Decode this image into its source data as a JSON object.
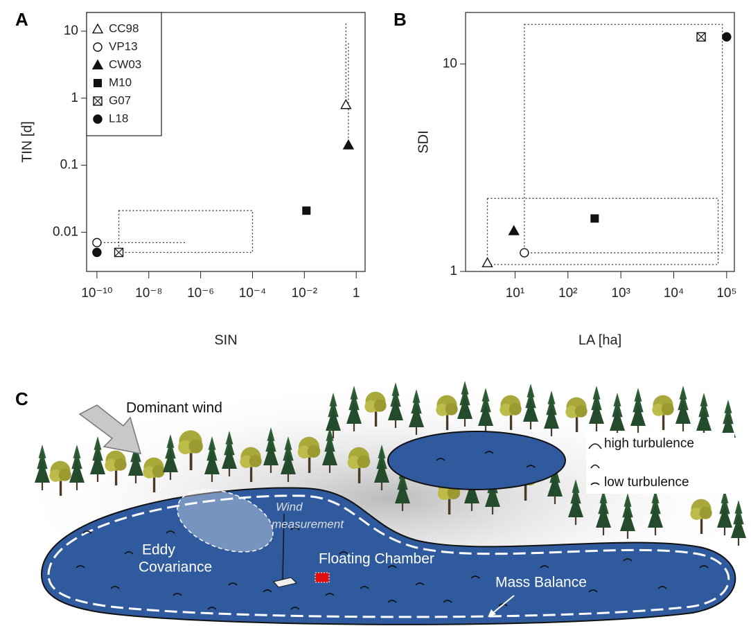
{
  "panel_labels": [
    "A",
    "B",
    "C"
  ],
  "chart_data": [
    {
      "type": "scatter",
      "x_label": "SIN",
      "y_label": "TIN [d]",
      "xscale": "log",
      "yscale": "log",
      "legend": true,
      "legend_position": "upper left",
      "xlim": [
        4e-11,
        2.2
      ],
      "ylim": [
        0.0026,
        19
      ],
      "xticks": [
        {
          "value": 1e-10,
          "label": "10⁻¹⁰"
        },
        {
          "value": 1e-08,
          "label": "10⁻⁸"
        },
        {
          "value": 1e-06,
          "label": "10⁻⁶"
        },
        {
          "value": 0.0001,
          "label": "10⁻⁴"
        },
        {
          "value": 0.01,
          "label": "10⁻²"
        },
        1
      ],
      "yticks": [
        0.01,
        0.1,
        1,
        10
      ],
      "series": [
        {
          "name": "CC98",
          "marker": "triangle-open",
          "color": "#111",
          "x": [
            0.4
          ],
          "values": [
            0.8
          ],
          "y_range": [
            0.8,
            13
          ]
        },
        {
          "name": "VP13",
          "marker": "circle-open",
          "color": "#111",
          "x": [
            1e-10
          ],
          "values": [
            0.007
          ],
          "x_range": [
            1e-10,
            3e-07
          ]
        },
        {
          "name": "CW03",
          "marker": "triangle",
          "color": "#111",
          "x": [
            0.5
          ],
          "values": [
            0.2
          ],
          "y_range": [
            0.2,
            7
          ]
        },
        {
          "name": "M10",
          "marker": "square",
          "color": "#111",
          "x": [
            0.012
          ],
          "values": [
            0.021
          ]
        },
        {
          "name": "G07",
          "marker": "square-x",
          "color": "#111",
          "x": [
            7e-10
          ],
          "values": [
            0.005
          ],
          "x_range": [
            7e-10,
            0.0001
          ],
          "y_range": [
            0.005,
            0.021
          ]
        },
        {
          "name": "L18",
          "marker": "circle",
          "color": "#111",
          "x": [
            1e-10
          ],
          "values": [
            0.005
          ]
        }
      ]
    },
    {
      "type": "scatter",
      "x_label": "LA [ha]",
      "y_label": "SDI",
      "xscale": "log",
      "yscale": "log",
      "legend": false,
      "xlim": [
        1.16,
        140000
      ],
      "ylim": [
        1,
        17.7
      ],
      "xticks": [
        {
          "value": 10,
          "label": "10¹"
        },
        {
          "value": 100,
          "label": "10²"
        },
        {
          "value": 1000,
          "label": "10³"
        },
        {
          "value": 10000,
          "label": "10⁴"
        },
        {
          "value": 100000,
          "label": "10⁵"
        }
      ],
      "yticks": [
        1,
        10
      ],
      "series": [
        {
          "name": "CC98",
          "marker": "triangle-open",
          "color": "#111",
          "x": [
            3
          ],
          "values": [
            1.1
          ],
          "x_range": [
            3,
            69000
          ],
          "y_range": [
            1.08,
            2.25
          ]
        },
        {
          "name": "VP13",
          "marker": "circle-open",
          "color": "#111",
          "x": [
            15
          ],
          "values": [
            1.23
          ],
          "x_range": [
            15,
            83000
          ],
          "y_range": [
            1.23,
            15.5
          ]
        },
        {
          "name": "CW03",
          "marker": "triangle",
          "color": "#111",
          "x": [
            9.5
          ],
          "values": [
            1.57
          ]
        },
        {
          "name": "M10",
          "marker": "square",
          "color": "#111",
          "x": [
            320
          ],
          "values": [
            1.8
          ]
        },
        {
          "name": "G07",
          "marker": "square-x",
          "color": "#111",
          "x": [
            33000
          ],
          "values": [
            13.5
          ]
        },
        {
          "name": "L18",
          "marker": "circle",
          "color": "#111",
          "x": [
            100000
          ],
          "values": [
            13.5
          ]
        }
      ]
    }
  ],
  "illustration": {
    "dominant_wind": "Dominant wind",
    "high_turbulence": "high turbulence",
    "low_turbulence": "low turbulence",
    "wind_measurement": [
      "Wind",
      "measurement"
    ],
    "eddy_covariance": [
      "Eddy",
      "Covariance"
    ],
    "floating_chamber": "Floating Chamber",
    "mass_balance": "Mass Balance"
  }
}
